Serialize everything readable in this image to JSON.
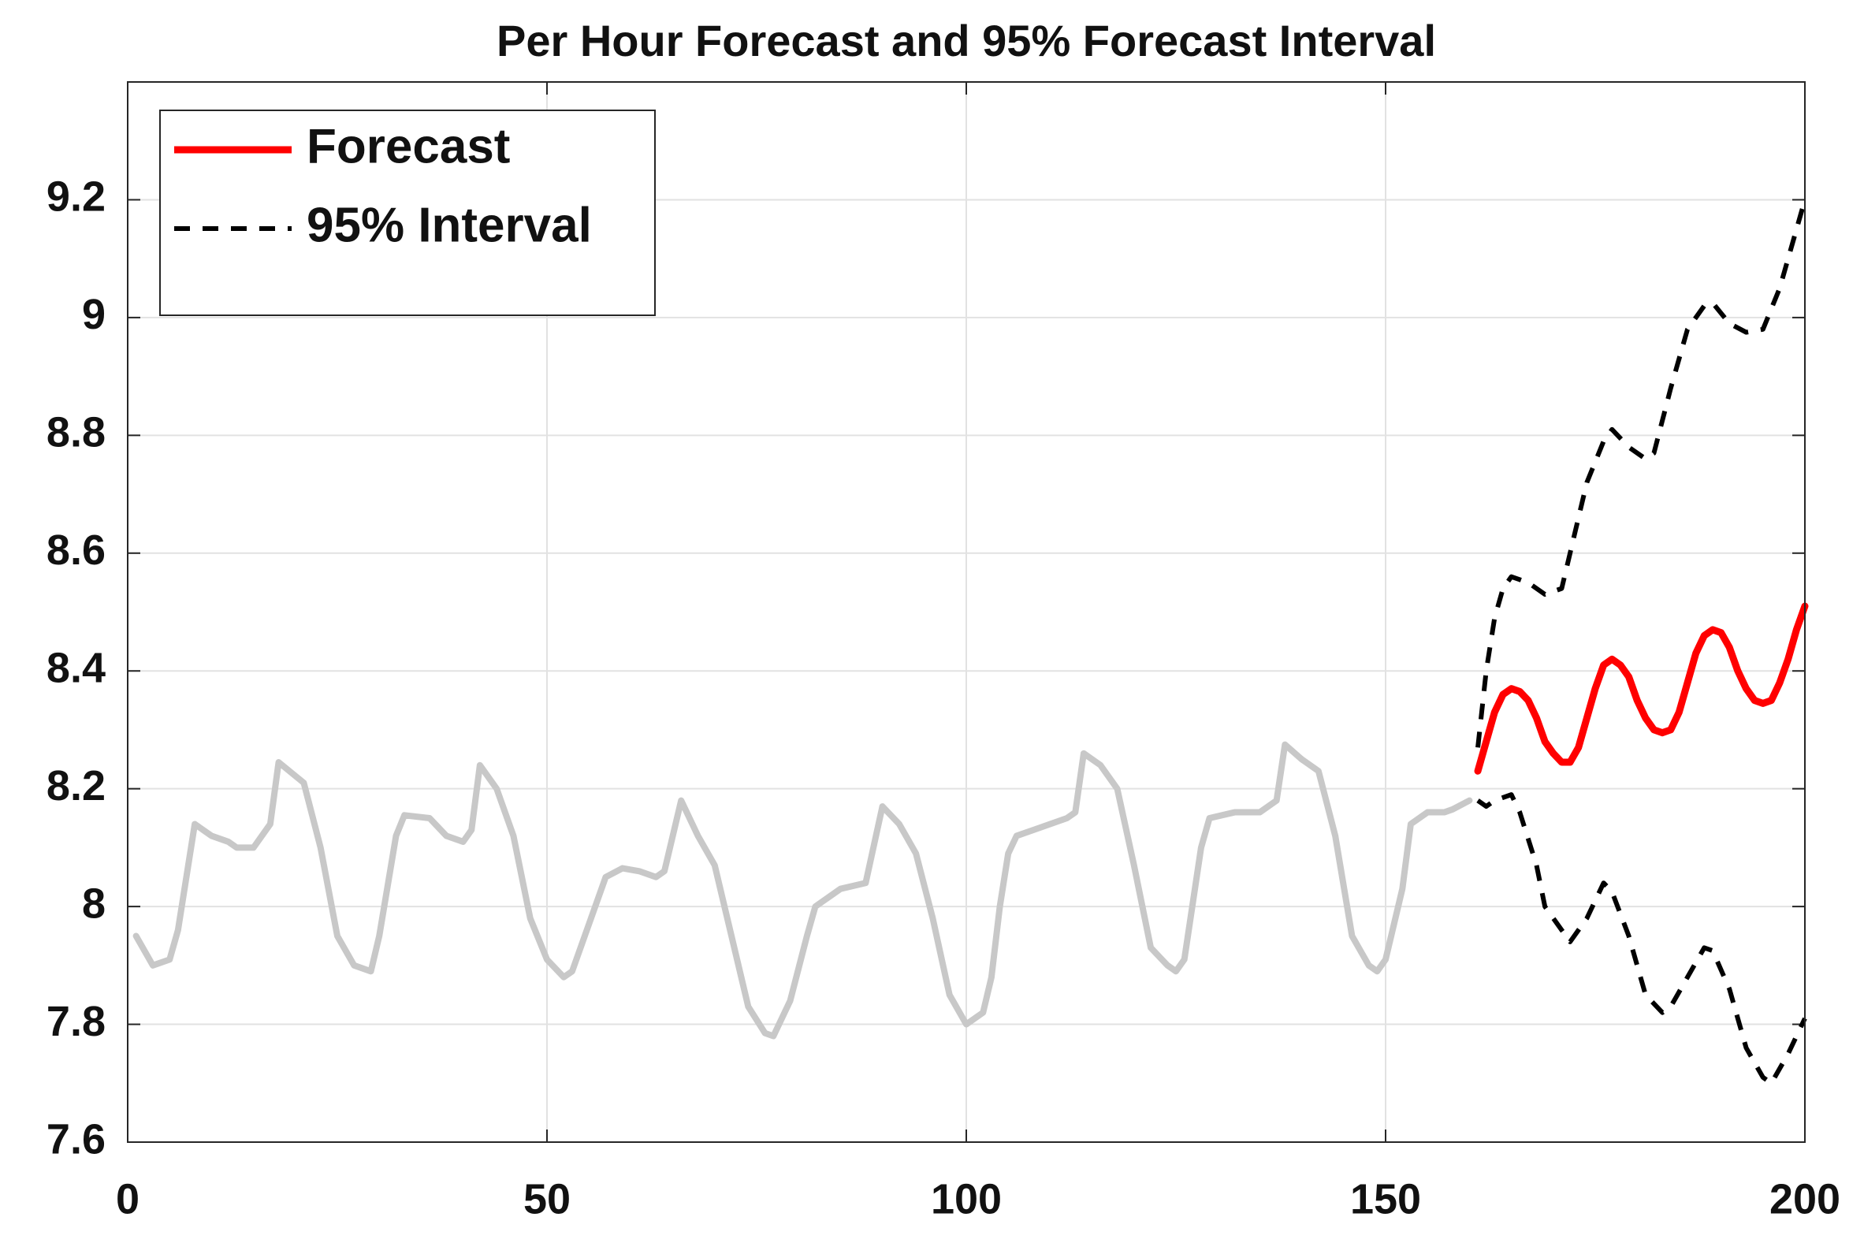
{
  "chart_data": {
    "type": "line",
    "title": "Per Hour Forecast and 95% Forecast Interval",
    "xlim": [
      0,
      200
    ],
    "xticks": [
      0,
      50,
      100,
      150,
      200
    ],
    "ylim": [
      7.6,
      9.4
    ],
    "yticks": [
      7.6,
      7.8,
      8,
      8.2,
      8.4,
      8.6,
      8.8,
      9,
      9.2
    ],
    "grid": true,
    "legend_position": "upper left",
    "series": [
      {
        "color": "#c8c8c8",
        "style": "solid",
        "x": [
          1,
          3,
          5,
          6,
          8,
          10,
          12,
          13,
          15,
          17,
          18,
          21,
          23,
          25,
          27,
          29,
          30,
          32,
          33,
          36,
          38,
          40,
          41,
          42,
          44,
          46,
          48,
          50,
          52,
          53,
          55,
          57,
          59,
          61,
          63,
          64,
          66,
          68,
          70,
          72,
          74,
          76,
          77,
          79,
          81,
          82,
          84,
          85,
          88,
          90,
          92,
          94,
          96,
          98,
          100,
          102,
          103,
          104,
          105,
          106,
          108,
          110,
          112,
          113,
          114,
          116,
          118,
          120,
          122,
          124,
          125,
          126,
          128,
          129,
          132,
          135,
          137,
          138,
          140,
          142,
          144,
          146,
          148,
          149,
          150,
          152,
          153,
          155,
          157,
          158,
          160
        ],
        "values": [
          7.95,
          7.9,
          7.91,
          7.96,
          8.14,
          8.12,
          8.11,
          8.1,
          8.1,
          8.14,
          8.245,
          8.21,
          8.1,
          7.95,
          7.9,
          7.89,
          7.95,
          8.12,
          8.155,
          8.15,
          8.12,
          8.11,
          8.13,
          8.24,
          8.2,
          8.12,
          7.98,
          7.91,
          7.88,
          7.89,
          7.97,
          8.05,
          8.065,
          8.06,
          8.05,
          8.06,
          8.18,
          8.12,
          8.07,
          7.95,
          7.83,
          7.785,
          7.78,
          7.84,
          7.95,
          8,
          8.02,
          8.03,
          8.04,
          8.17,
          8.14,
          8.09,
          7.98,
          7.85,
          7.8,
          7.82,
          7.88,
          8,
          8.09,
          8.12,
          8.13,
          8.14,
          8.15,
          8.16,
          8.26,
          8.24,
          8.2,
          8.07,
          7.93,
          7.9,
          7.89,
          7.91,
          8.1,
          8.15,
          8.16,
          8.16,
          8.18,
          8.275,
          8.25,
          8.23,
          8.12,
          7.95,
          7.9,
          7.89,
          7.91,
          8.03,
          8.14,
          8.16,
          8.16,
          8.165,
          8.18
        ]
      },
      {
        "name": "Forecast",
        "color": "#ff0000",
        "style": "solid",
        "x": [
          161,
          162,
          163,
          164,
          165,
          166,
          167,
          168,
          169,
          170,
          171,
          172,
          173,
          174,
          175,
          176,
          177,
          178,
          179,
          180,
          181,
          182,
          183,
          184,
          185,
          186,
          187,
          188,
          189,
          190,
          191,
          192,
          193,
          194,
          195,
          196,
          197,
          198,
          199,
          200
        ],
        "values": [
          8.23,
          8.28,
          8.33,
          8.36,
          8.37,
          8.365,
          8.35,
          8.32,
          8.28,
          8.26,
          8.245,
          8.245,
          8.27,
          8.32,
          8.37,
          8.41,
          8.42,
          8.41,
          8.39,
          8.35,
          8.32,
          8.3,
          8.295,
          8.3,
          8.33,
          8.38,
          8.43,
          8.46,
          8.47,
          8.465,
          8.44,
          8.4,
          8.37,
          8.35,
          8.345,
          8.35,
          8.38,
          8.42,
          8.47,
          8.51
        ]
      },
      {
        "name": "95% Interval",
        "color": "#000000",
        "style": "dashed",
        "x": [
          161,
          162,
          163,
          164,
          165,
          167,
          169,
          171,
          172,
          174,
          176,
          177,
          179,
          181,
          182,
          184,
          186,
          188,
          189,
          191,
          193,
          195,
          197,
          199,
          200
        ],
        "values": [
          8.27,
          8.4,
          8.49,
          8.54,
          8.56,
          8.55,
          8.53,
          8.54,
          8.6,
          8.72,
          8.79,
          8.81,
          8.78,
          8.76,
          8.77,
          8.88,
          8.98,
          9.02,
          9.025,
          8.99,
          8.975,
          8.98,
          9.05,
          9.15,
          9.2
        ]
      },
      {
        "color": "#000000",
        "style": "dashed",
        "x": [
          161,
          162,
          163,
          165,
          166,
          168,
          169,
          171,
          172,
          174,
          176,
          177,
          179,
          181,
          183,
          184,
          186,
          188,
          189,
          191,
          193,
          195,
          196,
          198,
          200
        ],
        "values": [
          8.18,
          8.17,
          8.18,
          8.19,
          8.16,
          8.07,
          8,
          7.96,
          7.94,
          7.98,
          8.04,
          8.025,
          7.95,
          7.85,
          7.82,
          7.83,
          7.88,
          7.93,
          7.925,
          7.86,
          7.76,
          7.71,
          7.7,
          7.75,
          7.81
        ]
      }
    ]
  }
}
